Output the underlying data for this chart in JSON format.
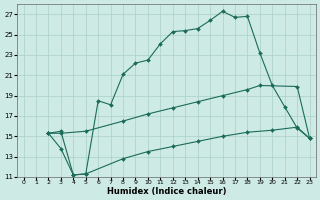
{
  "title": "",
  "xlabel": "Humidex (Indice chaleur)",
  "background_color": "#ceeae4",
  "grid_color": "#aad0c8",
  "line_color": "#1a6b5a",
  "xlim": [
    -0.5,
    23.5
  ],
  "ylim": [
    11,
    28
  ],
  "xticks": [
    0,
    1,
    2,
    3,
    4,
    5,
    6,
    7,
    8,
    9,
    10,
    11,
    12,
    13,
    14,
    15,
    16,
    17,
    18,
    19,
    20,
    21,
    22,
    23
  ],
  "yticks": [
    11,
    13,
    15,
    17,
    19,
    21,
    23,
    25,
    27
  ],
  "series": [
    {
      "x": [
        2,
        3,
        4,
        5,
        6,
        7,
        8,
        9,
        10,
        11,
        12,
        13,
        14,
        15,
        16,
        17,
        18,
        19,
        20,
        21,
        22,
        23
      ],
      "y": [
        15.3,
        15.5,
        11.2,
        11.3,
        18.5,
        18.1,
        21.1,
        22.2,
        22.5,
        24.1,
        25.3,
        25.4,
        25.6,
        26.4,
        27.3,
        26.7,
        26.8,
        23.2,
        20.0,
        17.9,
        15.8,
        14.8
      ]
    },
    {
      "x": [
        2,
        3,
        5,
        8,
        10,
        12,
        14,
        16,
        18,
        19,
        22,
        23
      ],
      "y": [
        15.3,
        15.3,
        15.5,
        16.5,
        17.2,
        17.8,
        18.4,
        19.0,
        19.6,
        20.0,
        19.9,
        14.8
      ]
    },
    {
      "x": [
        2,
        3,
        4,
        5,
        8,
        10,
        12,
        14,
        16,
        18,
        20,
        22,
        23
      ],
      "y": [
        15.3,
        13.8,
        11.2,
        11.3,
        12.8,
        13.5,
        14.0,
        14.5,
        15.0,
        15.4,
        15.6,
        15.9,
        14.8
      ]
    }
  ]
}
